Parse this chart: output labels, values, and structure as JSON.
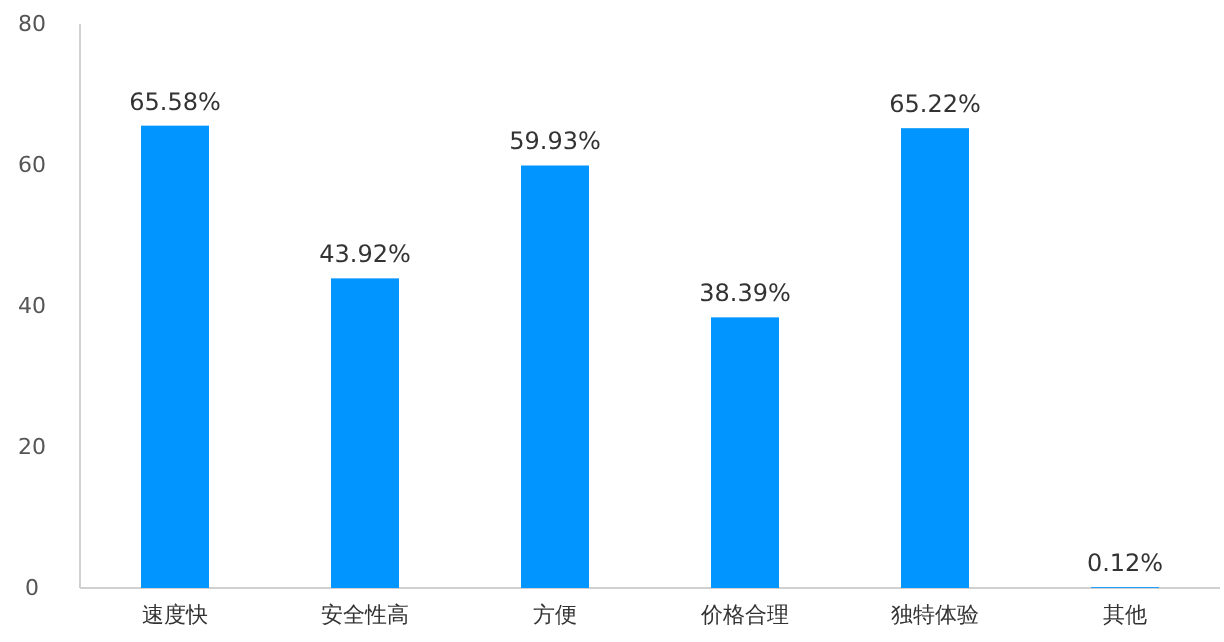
{
  "chart_data": {
    "type": "bar",
    "categories": [
      "速度快",
      "安全性高",
      "方便",
      "价格合理",
      "独特体验",
      "其他"
    ],
    "values": [
      65.58,
      43.92,
      59.93,
      38.39,
      65.22,
      0.12
    ],
    "value_labels": [
      "65.58%",
      "43.92%",
      "59.93%",
      "38.39%",
      "65.22%",
      "0.12%"
    ],
    "color": "#0095ff",
    "ylim": [
      0,
      80
    ],
    "yticks": [
      0,
      20,
      40,
      60,
      80
    ],
    "grid": false
  }
}
